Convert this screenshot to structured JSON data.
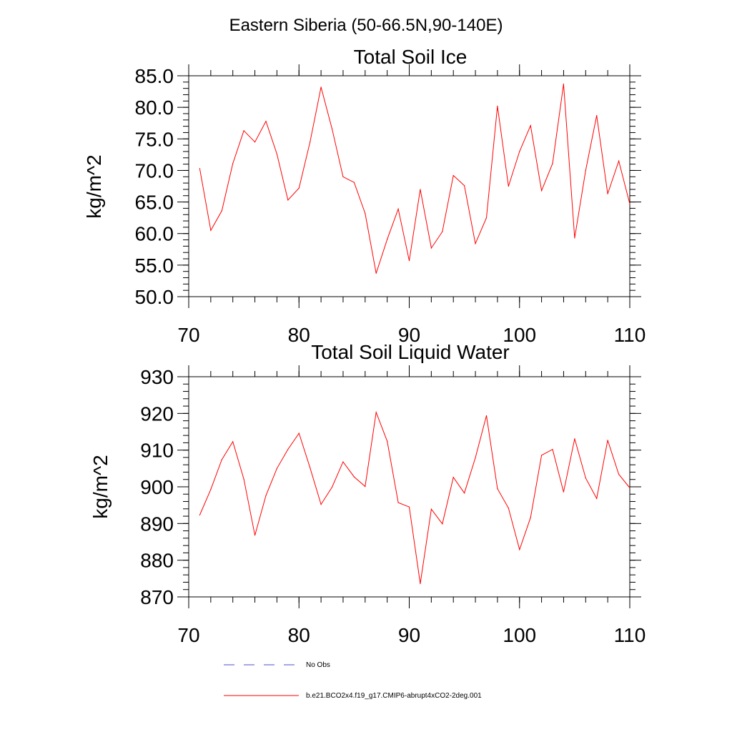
{
  "figure": {
    "title": "Eastern Siberia (50-66.5N,90-140E)"
  },
  "colors": {
    "series": "#ff0000",
    "obs": "#4d4dcc",
    "axis": "#000000"
  },
  "legend": [
    {
      "label": "No Obs",
      "style": "dashed",
      "color": "#4d4dcc"
    },
    {
      "label": "b.e21.BCO2x4.f19_g17.CMIP6-abrupt4xCO2-2deg.001",
      "style": "solid",
      "color": "#ff0000"
    }
  ],
  "chart_data": [
    {
      "type": "line",
      "title": "Total Soil Ice",
      "xlabel": "",
      "ylabel": "kg/m^2",
      "xlim": [
        70,
        110
      ],
      "ylim": [
        50,
        85
      ],
      "xticks": [
        70,
        80,
        90,
        100,
        110
      ],
      "xtick_labels": [
        "70",
        "80",
        "90",
        "100",
        "110"
      ],
      "yticks": [
        50,
        55,
        60,
        65,
        70,
        75,
        80,
        85
      ],
      "ytick_labels": [
        "50.0",
        "55.0",
        "60.0",
        "65.0",
        "70.0",
        "75.0",
        "80.0",
        "85.0"
      ],
      "grid": false,
      "series": [
        {
          "name": "b.e21.BCO2x4.f19_g17.CMIP6-abrupt4xCO2-2deg.001",
          "x": [
            71,
            72,
            73,
            74,
            75,
            76,
            77,
            78,
            79,
            80,
            81,
            82,
            83,
            84,
            85,
            86,
            87,
            88,
            89,
            90,
            91,
            92,
            93,
            94,
            95,
            96,
            97,
            98,
            99,
            100,
            101,
            102,
            103,
            104,
            105,
            106,
            107,
            108,
            109,
            110
          ],
          "values": [
            70.3,
            60.5,
            63.6,
            71.1,
            76.3,
            74.5,
            77.8,
            72.6,
            65.3,
            67.2,
            74.5,
            83.2,
            76.6,
            69.0,
            68.1,
            63.2,
            53.7,
            59.1,
            63.9,
            55.7,
            67.0,
            57.7,
            60.3,
            69.2,
            67.6,
            58.4,
            62.5,
            80.2,
            67.5,
            73.0,
            77.1,
            66.8,
            71.1,
            83.7,
            59.3,
            70.0,
            78.7,
            66.3,
            71.5,
            64.7
          ]
        }
      ]
    },
    {
      "type": "line",
      "title": "Total Soil Liquid Water",
      "xlabel": "",
      "ylabel": "kg/m^2",
      "xlim": [
        70,
        110
      ],
      "ylim": [
        870,
        930
      ],
      "xticks": [
        70,
        80,
        90,
        100,
        110
      ],
      "xtick_labels": [
        "70",
        "80",
        "90",
        "100",
        "110"
      ],
      "yticks": [
        870,
        880,
        890,
        900,
        910,
        920,
        930
      ],
      "ytick_labels": [
        "870",
        "880",
        "890",
        "900",
        "910",
        "920",
        "930"
      ],
      "grid": false,
      "series": [
        {
          "name": "b.e21.BCO2x4.f19_g17.CMIP6-abrupt4xCO2-2deg.001",
          "x": [
            71,
            72,
            73,
            74,
            75,
            76,
            77,
            78,
            79,
            80,
            81,
            82,
            83,
            84,
            85,
            86,
            87,
            88,
            89,
            90,
            91,
            92,
            93,
            94,
            95,
            96,
            97,
            98,
            99,
            100,
            101,
            102,
            103,
            104,
            105,
            106,
            107,
            108,
            109,
            110
          ],
          "values": [
            892.3,
            899.3,
            907.4,
            912.3,
            902.1,
            886.8,
            897.6,
            905.0,
            910.2,
            914.6,
            905.2,
            895.2,
            899.9,
            906.8,
            902.7,
            900.1,
            920.3,
            912.4,
            895.7,
            894.5,
            873.6,
            893.9,
            889.9,
            902.6,
            898.3,
            907.9,
            919.4,
            899.5,
            894.2,
            882.9,
            891.6,
            908.6,
            910.2,
            898.6,
            913.1,
            902.4,
            896.8,
            912.7,
            903.4,
            899.7
          ]
        }
      ]
    }
  ]
}
